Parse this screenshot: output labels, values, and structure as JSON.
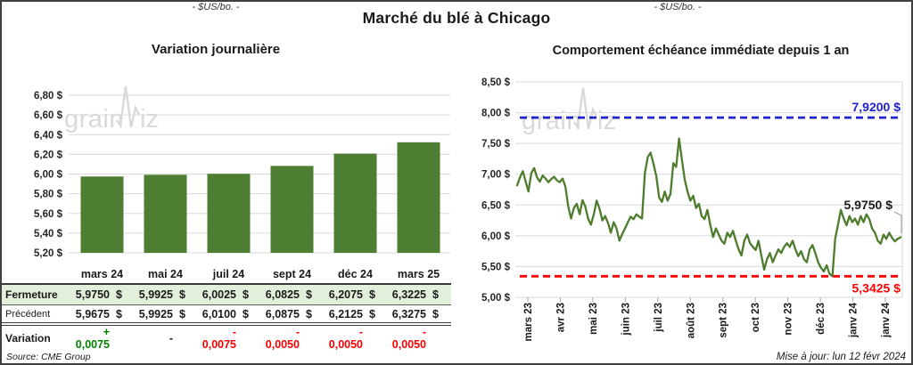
{
  "header": {
    "title": "Marché du blé à Chicago"
  },
  "watermark": {
    "pre": "grain",
    "post": "iz"
  },
  "left_panel": {
    "title": "Variation journalière",
    "subtitle": "- $US/bo. -",
    "source": "Source: CME Group",
    "table": {
      "currency": "$",
      "fermeture_bg": "#e2efda",
      "months": [
        "mars 24",
        "mai 24",
        "juil 24",
        "sept 24",
        "déc 24",
        "mars 25"
      ],
      "fermeture_label": "Fermeture",
      "fermeture": [
        "5,9750",
        "5,9925",
        "6,0025",
        "6,0825",
        "6,2075",
        "6,3225"
      ],
      "precedent_label": "Précédent",
      "precedent": [
        "5,9675",
        "5,9925",
        "6,0100",
        "6,0875",
        "6,2125",
        "6,3275"
      ],
      "variation_label": "Variation",
      "variation": [
        "+ 0,0075",
        "-",
        "- 0,0075",
        "- 0,0050",
        "- 0,0050",
        "- 0,0050"
      ],
      "variation_colors": [
        "#008000",
        "#1a1a1a",
        "#ff0000",
        "#ff0000",
        "#ff0000",
        "#ff0000"
      ]
    }
  },
  "right_panel": {
    "title": "Comportement échéance immédiate depuis 1 an",
    "subtitle": "- $US/bo. -",
    "updated": "Mise à jour: lun 12 févr 2024"
  },
  "chart_data": [
    {
      "type": "bar",
      "title": "Variation journalière",
      "ylabel_unit": "$US/bo.",
      "categories": [
        "mars 24",
        "mai 24",
        "juil 24",
        "sept 24",
        "déc 24",
        "mars 25"
      ],
      "values": [
        5.975,
        5.9925,
        6.0025,
        6.0825,
        6.2075,
        6.3225
      ],
      "ylim": [
        5.2,
        6.8
      ],
      "ytick_step": 0.2,
      "ytick_labels": [
        "6,80 $",
        "6,60 $",
        "6,40 $",
        "6,20 $",
        "6,00 $",
        "5,80 $",
        "5,60 $",
        "5,40 $",
        "5,20 $"
      ],
      "bar_color": "#4e7e32",
      "grid_color": "#d9d9d9",
      "grid": true,
      "legend": false
    },
    {
      "type": "line",
      "title": "Comportement échéance immédiate depuis 1 an",
      "ylabel_unit": "$US/bo.",
      "x_labels": [
        "mars 23",
        "avr 23",
        "mai 23",
        "juin 23",
        "juil 23",
        "août 23",
        "sept 23",
        "oct 23",
        "nov 23",
        "déc 23",
        "janv 24",
        "janv 24"
      ],
      "values": [
        6.82,
        6.95,
        7.05,
        6.88,
        6.72,
        7.02,
        7.1,
        6.95,
        6.88,
        6.98,
        6.93,
        6.87,
        6.92,
        6.96,
        6.9,
        6.87,
        6.93,
        6.8,
        6.48,
        6.28,
        6.45,
        6.52,
        6.35,
        6.58,
        6.48,
        6.28,
        6.18,
        6.35,
        6.57,
        6.44,
        6.25,
        6.32,
        6.21,
        6.05,
        6.22,
        6.12,
        5.92,
        6.03,
        6.12,
        6.22,
        6.31,
        6.27,
        6.35,
        6.31,
        6.28,
        7.02,
        7.28,
        7.35,
        7.17,
        6.97,
        6.62,
        6.55,
        6.72,
        6.57,
        6.68,
        7.18,
        7.12,
        7.58,
        7.25,
        6.92,
        6.72,
        6.57,
        6.65,
        6.45,
        6.52,
        6.32,
        6.27,
        6.42,
        6.18,
        5.98,
        6.12,
        6.02,
        5.92,
        5.87,
        6.05,
        5.98,
        6.08,
        5.92,
        5.78,
        5.68,
        5.92,
        6.02,
        5.88,
        5.82,
        5.77,
        5.92,
        5.68,
        5.45,
        5.62,
        5.72,
        5.57,
        5.68,
        5.78,
        5.72,
        5.82,
        5.88,
        5.82,
        5.92,
        5.78,
        5.67,
        5.75,
        5.62,
        5.57,
        5.78,
        5.85,
        5.72,
        5.57,
        5.48,
        5.42,
        5.52,
        5.38,
        5.3425,
        5.95,
        6.18,
        6.42,
        6.28,
        6.17,
        6.32,
        6.22,
        6.28,
        6.18,
        6.32,
        6.22,
        6.35,
        6.27,
        6.12,
        6.05,
        5.92,
        5.87,
        6.02,
        5.95,
        6.05,
        5.97,
        5.91,
        5.95,
        5.975
      ],
      "ylim": [
        5.0,
        8.5
      ],
      "ytick_step": 0.5,
      "ytick_labels": [
        "8,50 $",
        "8,00 $",
        "7,50 $",
        "7,00 $",
        "6,50 $",
        "6,00 $",
        "5,50 $",
        "5,00 $"
      ],
      "line_color": "#4e7c2d",
      "grid_color": "#d9d9d9",
      "grid": true,
      "legend": false,
      "annotations": [
        {
          "kind": "resistance",
          "value": 7.92,
          "label": "7,9200 $",
          "color": "#2222cc",
          "style": "dashed"
        },
        {
          "kind": "support",
          "value": 5.3425,
          "label": "5,3425 $",
          "color": "#ff0000",
          "style": "dashed"
        }
      ],
      "last_point": {
        "value": 5.975,
        "label": "5,9750 $",
        "color": "#1a1a1a"
      }
    }
  ]
}
